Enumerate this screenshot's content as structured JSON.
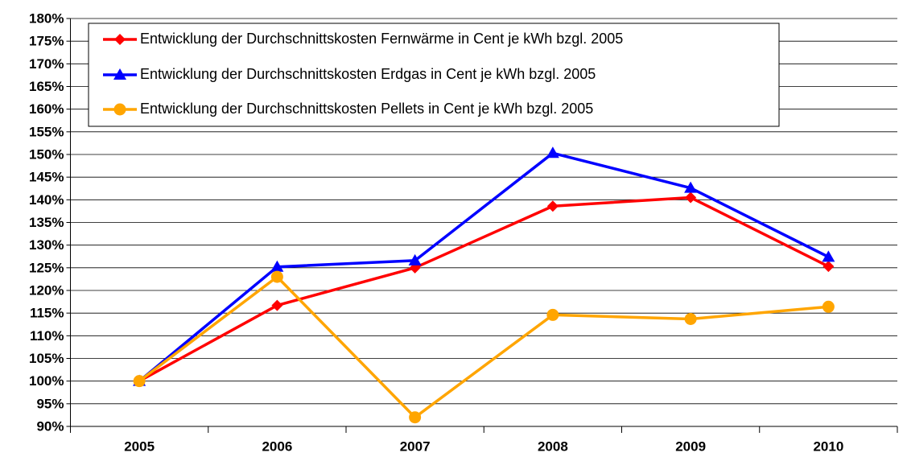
{
  "chart_data": {
    "type": "line",
    "categories": [
      "2005",
      "2006",
      "2007",
      "2008",
      "2009",
      "2010"
    ],
    "series": [
      {
        "name": "Entwicklung der Durchschnittskosten Fernwärme in Cent je kWh bzgl. 2005",
        "color": "#ff0000",
        "marker": "diamond",
        "values": [
          100,
          116.7,
          125,
          138.6,
          140.5,
          125.3
        ]
      },
      {
        "name": "Entwicklung der Durchschnittskosten Erdgas in Cent je kWh bzgl. 2005",
        "color": "#0000ff",
        "marker": "triangle",
        "values": [
          100,
          125.2,
          126.6,
          150.3,
          142.6,
          127.4
        ]
      },
      {
        "name": "Entwicklung der Durchschnittskosten Pellets in Cent je kWh bzgl. 2005",
        "color": "#ffa500",
        "marker": "circle",
        "values": [
          100,
          123,
          92,
          114.6,
          113.7,
          116.4
        ]
      }
    ],
    "ylim": [
      90,
      180
    ],
    "yticks": [
      {
        "value": 90,
        "label": "90%"
      },
      {
        "value": 95,
        "label": "95%"
      },
      {
        "value": 100,
        "label": "100%"
      },
      {
        "value": 105,
        "label": "105%"
      },
      {
        "value": 110,
        "label": "110%"
      },
      {
        "value": 115,
        "label": "115%"
      },
      {
        "value": 120,
        "label": "120%"
      },
      {
        "value": 125,
        "label": "125%"
      },
      {
        "value": 130,
        "label": "130%"
      },
      {
        "value": 135,
        "label": "135%"
      },
      {
        "value": 140,
        "label": "140%"
      },
      {
        "value": 145,
        "label": "145%"
      },
      {
        "value": 150,
        "label": "150%"
      },
      {
        "value": 155,
        "label": "155%"
      },
      {
        "value": 160,
        "label": "160%"
      },
      {
        "value": 165,
        "label": "165%"
      },
      {
        "value": 170,
        "label": "170%"
      },
      {
        "value": 175,
        "label": "175%"
      },
      {
        "value": 180,
        "label": "180%"
      }
    ],
    "grid": true,
    "legend": "top-left"
  }
}
